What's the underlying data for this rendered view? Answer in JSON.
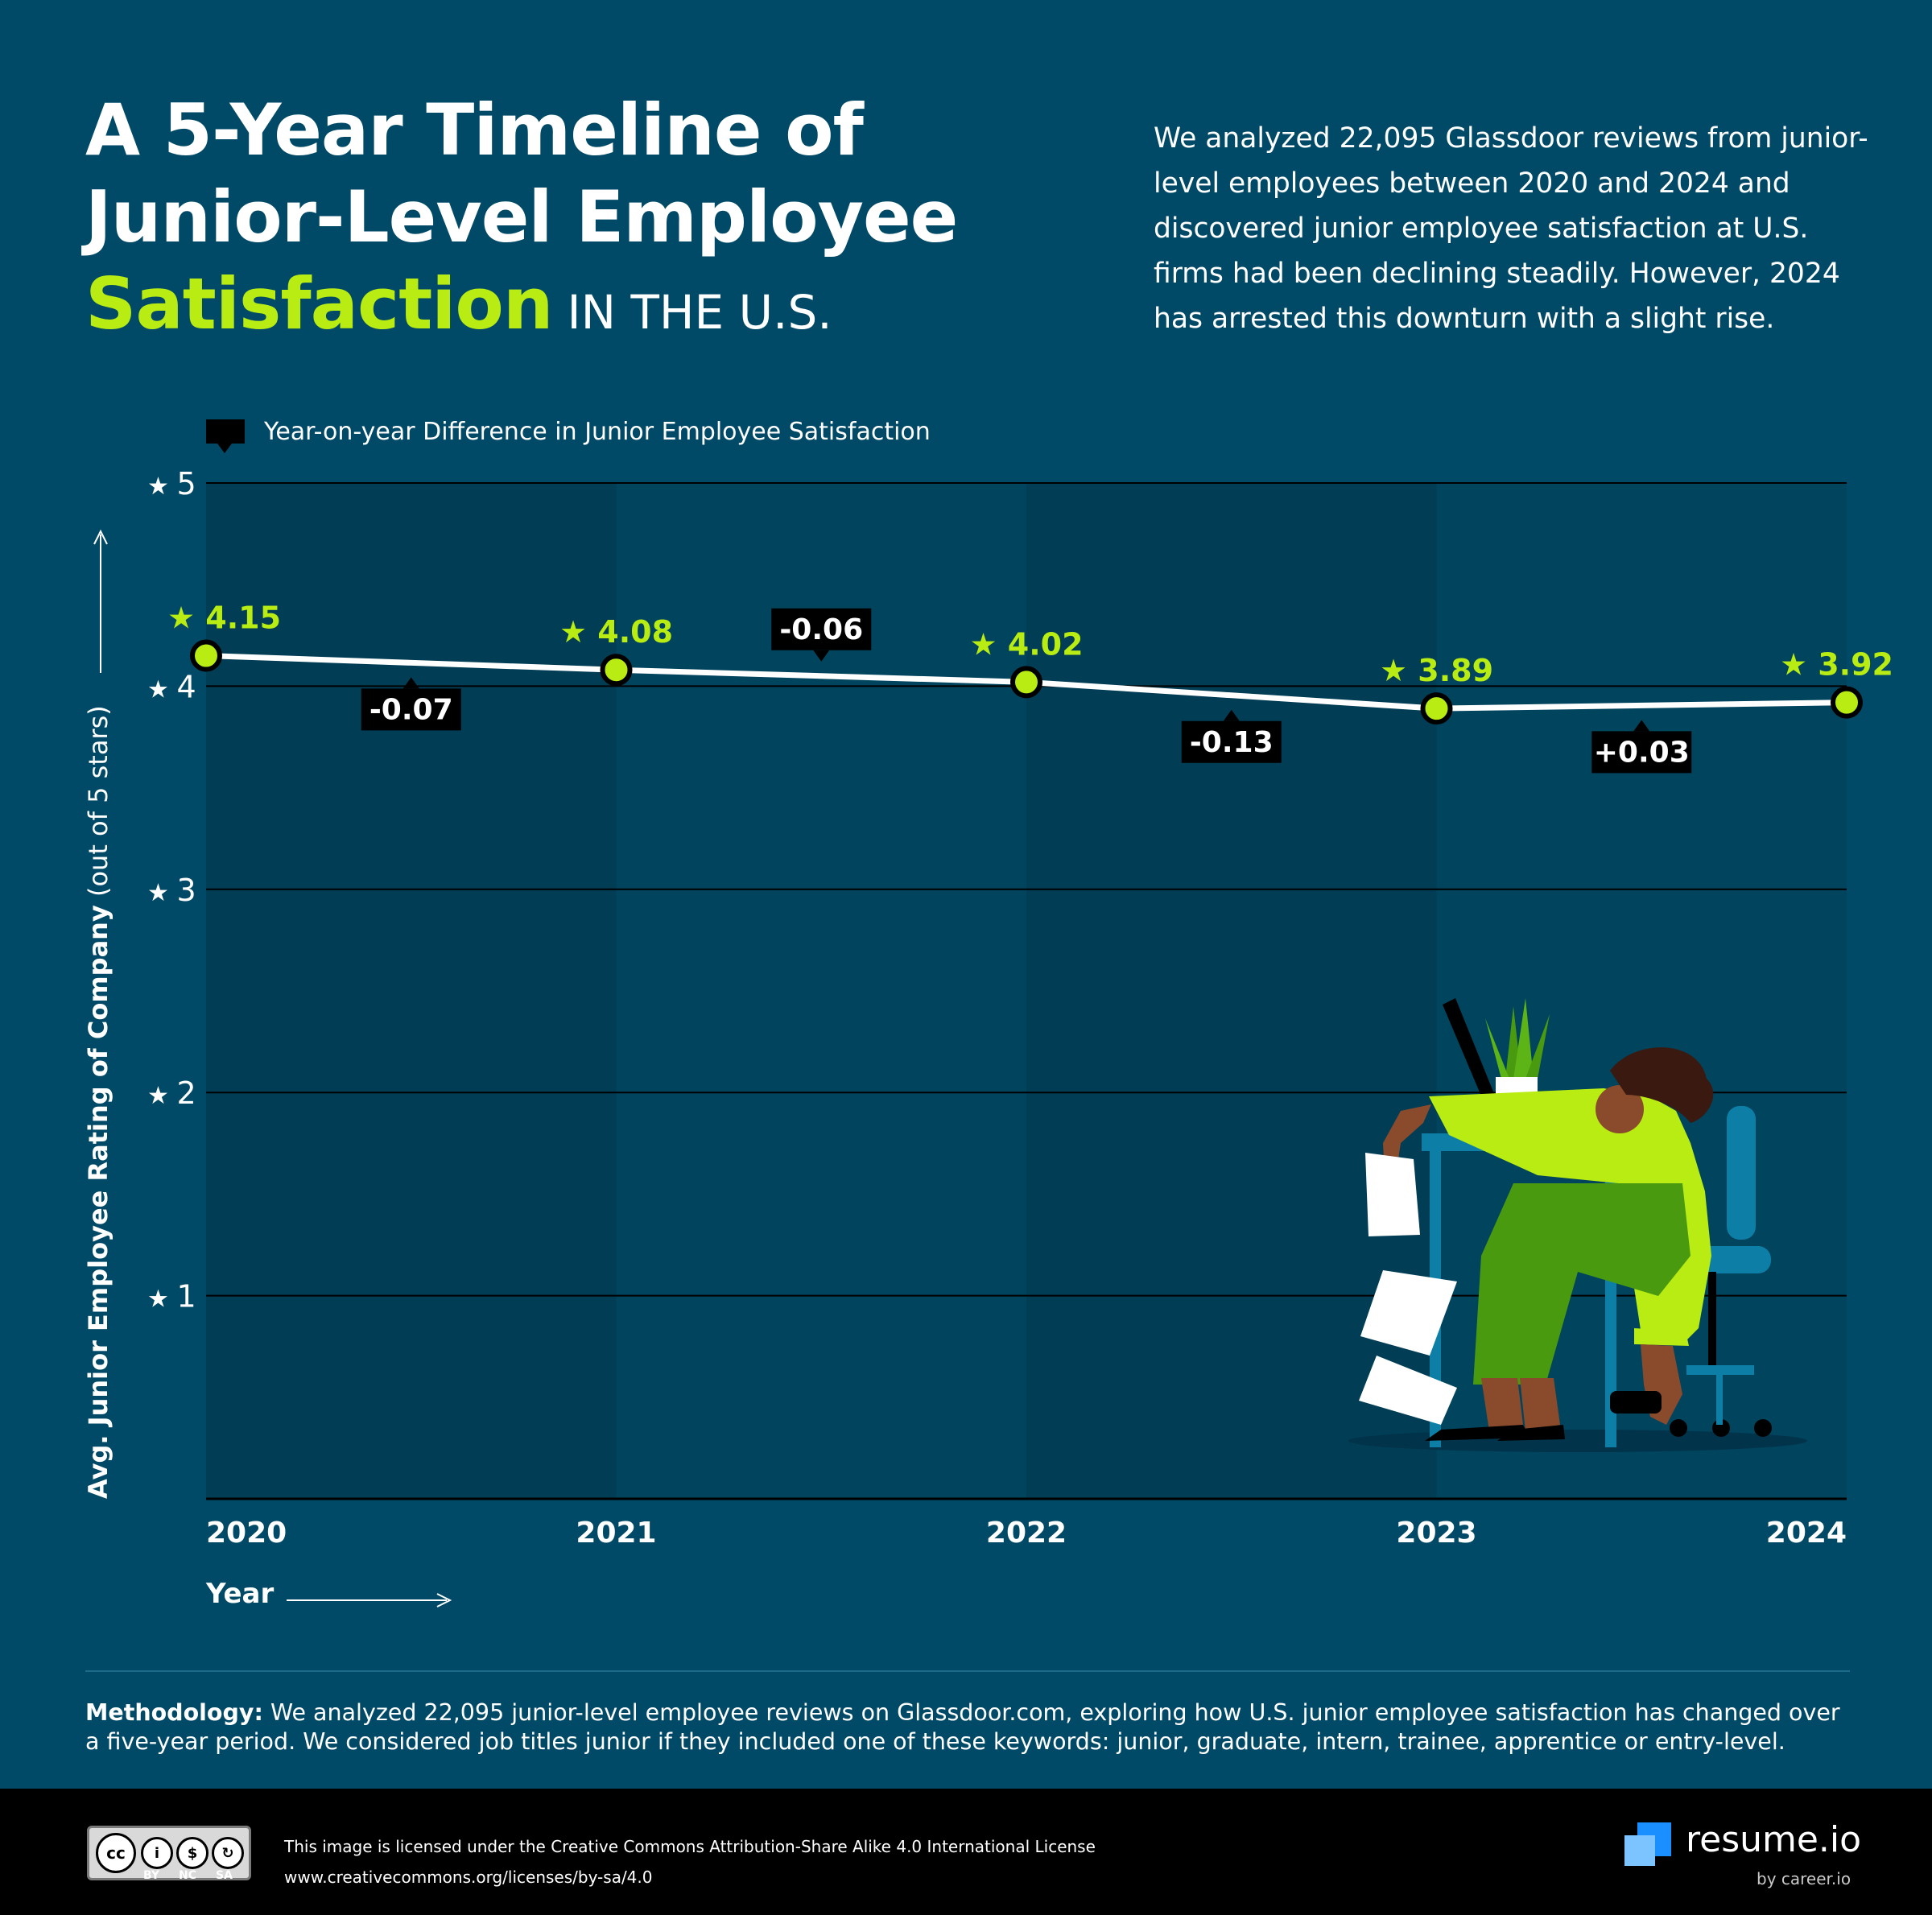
{
  "header": {
    "title_line1": "A 5-Year Timeline of",
    "title_line2": "Junior-Level Employee",
    "title_highlight": "Satisfaction",
    "title_suffix": "IN THE U.S.",
    "intro": "We analyzed 22,095 Glassdoor reviews from junior-level employees between 2020 and 2024 and discovered junior employee satisfaction at U.S. firms had been declining steadily. However, 2024 has arrested this downturn with a slight rise."
  },
  "legend": {
    "label": "Year-on-year Difference in Junior Employee Satisfaction"
  },
  "chart_data": {
    "type": "line",
    "x": [
      "2020",
      "2021",
      "2022",
      "2023",
      "2024"
    ],
    "values": [
      4.15,
      4.08,
      4.02,
      3.89,
      3.92
    ],
    "value_labels": [
      "4.15",
      "4.08",
      "4.02",
      "3.89",
      "3.92"
    ],
    "differences": [
      {
        "label": "-0.07",
        "value": -0.07
      },
      {
        "label": "-0.06",
        "value": -0.06
      },
      {
        "label": "-0.13",
        "value": -0.13
      },
      {
        "label": "+0.03",
        "value": 0.03
      }
    ],
    "y_ticks": [
      "1",
      "2",
      "3",
      "4",
      "5"
    ],
    "ylim": [
      0,
      5
    ],
    "xlabel": "Year",
    "ylabel_bold": "Avg. Junior Employee Rating of Company",
    "ylabel_rest": "(out of 5 stars)",
    "grid": true,
    "colors": {
      "line": "#ffffff",
      "marker": "#b8ec12",
      "label": "#b8ec12",
      "diff_box": "#000000"
    }
  },
  "illustration": {
    "name": "tired-office-worker-at-desk"
  },
  "methodology": {
    "label": "Methodology:",
    "text": "We analyzed 22,095 junior-level employee reviews on Glassdoor.com, exploring how U.S. junior employee satisfaction has changed over a five-year period. We considered job titles junior if they included one of these keywords: junior, graduate, intern, trainee, apprentice or entry-level."
  },
  "footer": {
    "cc_labels": [
      "BY",
      "NC",
      "SA"
    ],
    "license_text": "This image is licensed under the Creative Commons Attribution-Share Alike 4.0 International License",
    "license_url": "www.creativecommons.org/licenses/by-sa/4.0",
    "brand": "resume.io",
    "brand_sub": "by career.io"
  }
}
